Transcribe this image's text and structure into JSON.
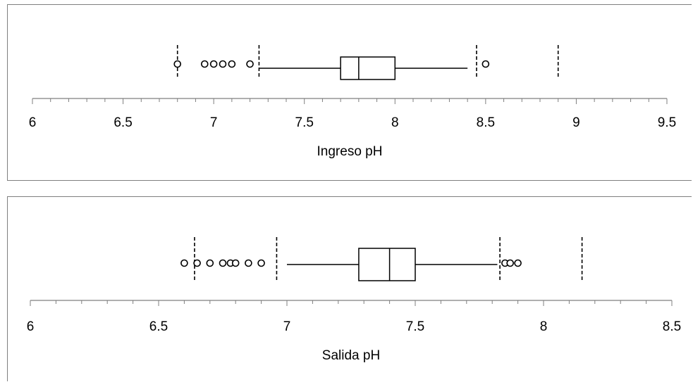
{
  "chart_data": [
    {
      "type": "boxplot",
      "xlabel": "Ingreso pH",
      "xlim": [
        6,
        9.5
      ],
      "ticks": [
        6,
        6.5,
        7,
        7.5,
        8,
        8.5,
        9,
        9.5
      ],
      "minor_tick_step": 0.1,
      "box": {
        "q1": 7.7,
        "median": 7.8,
        "q3": 8.0,
        "whisker_low": 7.25,
        "whisker_high": 8.4
      },
      "fences": [
        6.8,
        7.25,
        8.45,
        8.9
      ],
      "outliers": [
        6.8,
        6.95,
        7.0,
        7.05,
        7.1,
        7.2,
        8.5
      ],
      "grid": false
    },
    {
      "type": "boxplot",
      "xlabel": "Salida pH",
      "xlim": [
        6,
        8.5
      ],
      "ticks": [
        6,
        6.5,
        7,
        7.5,
        8,
        8.5
      ],
      "minor_tick_step": 0.1,
      "box": {
        "q1": 7.28,
        "median": 7.4,
        "q3": 7.5,
        "whisker_low": 7.0,
        "whisker_high": 7.82
      },
      "fences": [
        6.64,
        6.96,
        7.83,
        8.15
      ],
      "outliers": [
        6.6,
        6.65,
        6.7,
        6.75,
        6.78,
        6.8,
        6.85,
        6.9,
        7.85,
        7.87,
        7.9
      ],
      "grid": false
    }
  ]
}
